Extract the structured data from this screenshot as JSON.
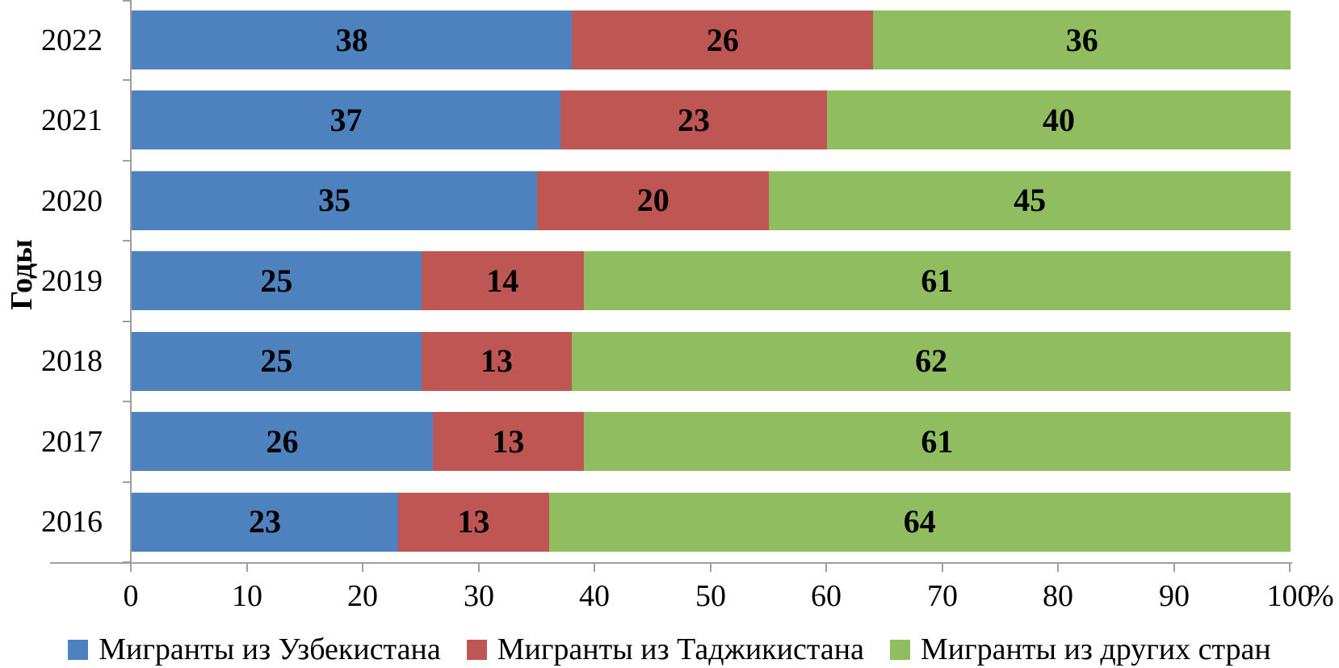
{
  "chart_data": {
    "type": "bar",
    "orientation": "horizontal",
    "stacked": true,
    "ylabel": "Годы",
    "unit": "%",
    "categories": [
      "2022",
      "2021",
      "2020",
      "2019",
      "2018",
      "2017",
      "2016"
    ],
    "series": [
      {
        "name": "Мигранты из Узбекистана",
        "color": "#4e82be",
        "values": [
          38,
          37,
          35,
          25,
          25,
          26,
          23
        ]
      },
      {
        "name": "Мигранты из Таджикистана",
        "color": "#be5754",
        "values": [
          26,
          23,
          20,
          14,
          13,
          13,
          13
        ]
      },
      {
        "name": "Мигранты из других стран",
        "color": "#90bd60",
        "values": [
          36,
          40,
          45,
          61,
          62,
          61,
          64
        ]
      }
    ],
    "x_axis": {
      "range": [
        0,
        100
      ],
      "ticks": [
        0,
        10,
        20,
        30,
        40,
        50,
        60,
        70,
        80,
        90,
        100
      ]
    },
    "legend_position": "bottom",
    "grid": false,
    "axis_color": "#9e9e9e",
    "value_label_color": "#000000"
  }
}
